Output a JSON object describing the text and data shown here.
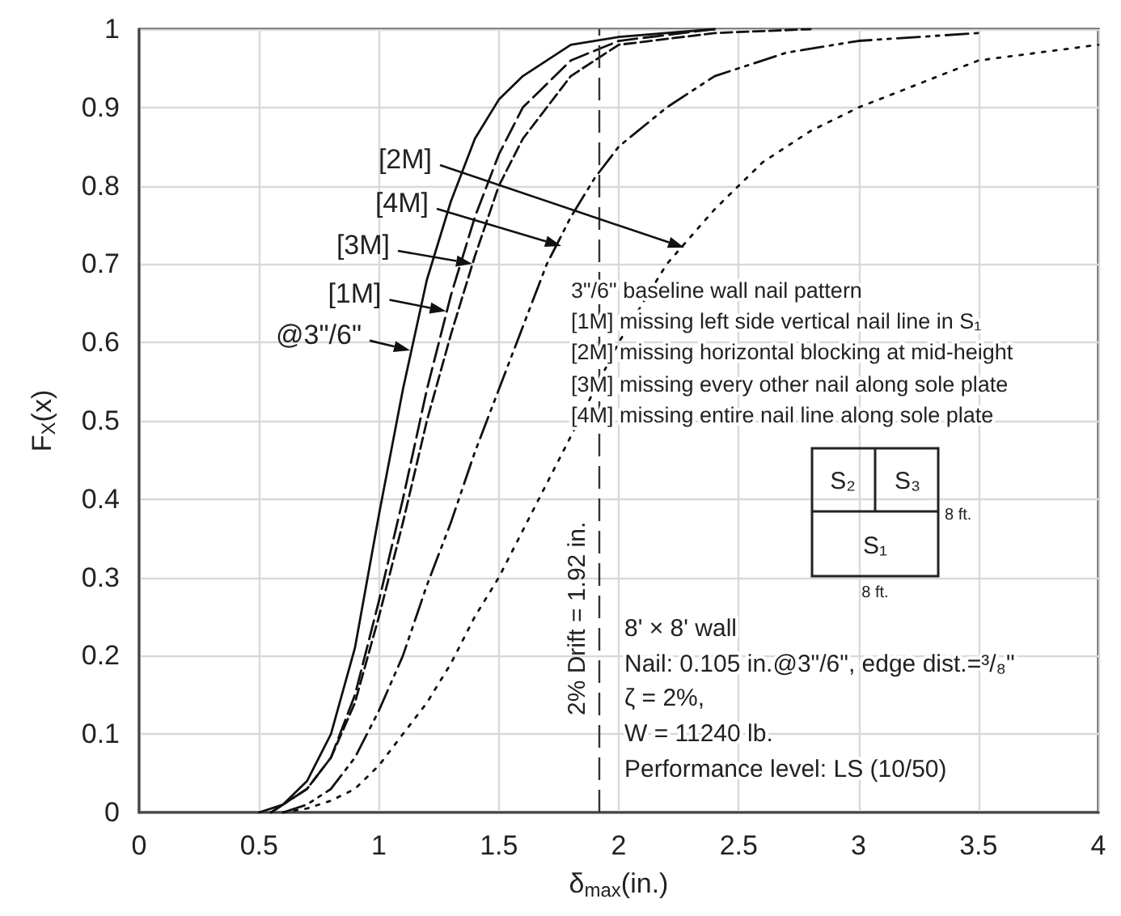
{
  "chart_data": {
    "type": "line",
    "xlabel": "δ$_{max}$(in.)",
    "ylabel": "F$_{X}$(x)",
    "xlim": [
      0,
      4
    ],
    "xticks": [
      0,
      0.5,
      1,
      1.5,
      2,
      2.5,
      3,
      3.5,
      4
    ],
    "ylim": [
      0,
      1
    ],
    "yticks": [
      0,
      0.1,
      0.2,
      0.3,
      0.4,
      0.5,
      0.6,
      0.7,
      0.8,
      0.9,
      1
    ],
    "grid": true,
    "series": [
      {
        "color": "#111111",
        "line_style": "solid",
        "x": [
          0.5,
          0.6,
          0.7,
          0.8,
          0.9,
          1.0,
          1.1,
          1.2,
          1.3,
          1.4,
          1.5,
          1.6,
          1.8,
          2.0,
          2.4
        ],
        "values": [
          0,
          0.01,
          0.04,
          0.1,
          0.21,
          0.38,
          0.54,
          0.68,
          0.78,
          0.86,
          0.91,
          0.94,
          0.98,
          0.99,
          1.0
        ]
      },
      {
        "color": "#111111",
        "line_style": "dashed",
        "x": [
          0.55,
          0.6,
          0.7,
          0.8,
          0.9,
          1.0,
          1.1,
          1.2,
          1.3,
          1.4,
          1.5,
          1.6,
          1.8,
          2.0,
          2.4
        ],
        "values": [
          0,
          0.01,
          0.03,
          0.07,
          0.15,
          0.27,
          0.4,
          0.54,
          0.66,
          0.76,
          0.84,
          0.9,
          0.96,
          0.985,
          1.0
        ]
      },
      {
        "color": "#111111",
        "line_style": "dotted",
        "x": [
          0.6,
          0.7,
          0.8,
          0.9,
          1.0,
          1.1,
          1.2,
          1.3,
          1.4,
          1.5,
          1.6,
          1.8,
          2.0,
          2.2,
          2.4,
          2.6,
          2.8,
          3.0,
          3.25,
          3.5,
          3.75,
          4.0
        ],
        "values": [
          0,
          0.005,
          0.015,
          0.03,
          0.06,
          0.1,
          0.14,
          0.19,
          0.25,
          0.3,
          0.36,
          0.48,
          0.6,
          0.7,
          0.77,
          0.83,
          0.87,
          0.9,
          0.93,
          0.96,
          0.97,
          0.98
        ]
      },
      {
        "color": "#111111",
        "line_style": "dashed",
        "x": [
          0.55,
          0.6,
          0.7,
          0.8,
          0.9,
          1.0,
          1.1,
          1.2,
          1.3,
          1.4,
          1.5,
          1.6,
          1.8,
          2.0,
          2.4,
          2.8
        ],
        "values": [
          0,
          0.01,
          0.03,
          0.07,
          0.14,
          0.25,
          0.37,
          0.5,
          0.61,
          0.71,
          0.8,
          0.86,
          0.94,
          0.98,
          0.995,
          1.0
        ]
      },
      {
        "color": "#111111",
        "line_style": "dashed",
        "x": [
          0.6,
          0.7,
          0.8,
          0.9,
          1.0,
          1.1,
          1.2,
          1.3,
          1.4,
          1.5,
          1.6,
          1.7,
          1.8,
          1.9,
          2.0,
          2.2,
          2.4,
          2.7,
          3.0,
          3.5
        ],
        "values": [
          0,
          0.01,
          0.03,
          0.07,
          0.13,
          0.2,
          0.29,
          0.37,
          0.46,
          0.54,
          0.62,
          0.7,
          0.76,
          0.81,
          0.85,
          0.9,
          0.94,
          0.97,
          0.985,
          0.995
        ]
      }
    ],
    "ref_lines": [
      {
        "axis": "x",
        "value": 1.92,
        "label": "2% Drift = 1.92 in.",
        "line_style": "dashed",
        "color": "#333333"
      }
    ],
    "annotations": [
      {
        "text": "@3\"/6\"",
        "x": 1.13,
        "y": 0.59
      },
      {
        "text": "[1M]",
        "x": 1.28,
        "y": 0.64
      },
      "[3M]",
      "[4M]",
      "[2M]",
      "3\"/6\" baseline wall nail pattern",
      "[1M] missing left side vertical nail line in S₁",
      "[2M] missing horizontal blocking at mid-height",
      "[3M] missing every other nail along sole plate",
      "[4M] missing entire nail line along sole plate",
      "S₂",
      "S₃",
      "S₁",
      "8 ft.",
      "8 ft.",
      "8' × 8' wall",
      "Nail: 0.105 in.@3\"/6\", edge dist.=³/₈\"",
      "ζ = 2%,",
      "W = 11240 lb.",
      "Performance level: LS (10/50)"
    ]
  }
}
